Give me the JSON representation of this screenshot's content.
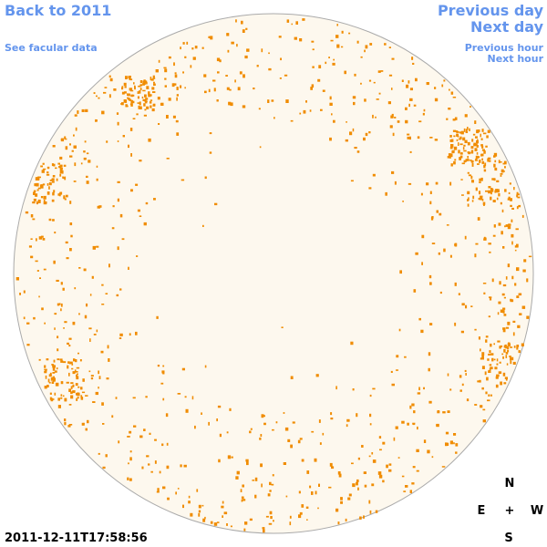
{
  "navigation": {
    "back": "Back to 2011",
    "previous_day": "Previous day",
    "next_day": "Next day",
    "facular_data": "See facular data",
    "previous_hour": "Previous hour",
    "next_hour": "Next hour"
  },
  "timestamp": "2011-12-11T17:58:56",
  "compass": {
    "north": "N",
    "east": "E",
    "center": "+",
    "west": "W",
    "south": "S"
  }
}
